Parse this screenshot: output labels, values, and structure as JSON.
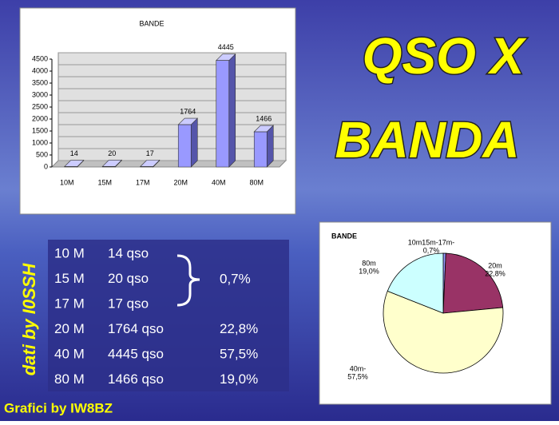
{
  "title": [
    "QSO X",
    "BANDA"
  ],
  "source": "dati by I0SSH",
  "credit": "Grafici by IW8BZ",
  "table": {
    "rows": [
      [
        "10 M",
        "14 qso"
      ],
      [
        "15 M",
        "20 qso"
      ],
      [
        "17 M",
        "17 qso"
      ],
      [
        "20 M",
        "1764 qso",
        "22,8%"
      ],
      [
        "40 M",
        "4445 qso",
        "57,5%"
      ],
      [
        "80 M",
        "1466 qso",
        "19,0%"
      ]
    ],
    "group_percent": "0,7%"
  },
  "chart_data": [
    {
      "type": "bar",
      "title": "BANDE",
      "categories": [
        "10M",
        "15M",
        "17M",
        "20M",
        "40M",
        "80M"
      ],
      "values": [
        14,
        20,
        17,
        1764,
        4445,
        1466
      ],
      "color": "#9999ff",
      "ylim": [
        0,
        4500
      ],
      "yticks": [
        0,
        500,
        1000,
        1500,
        2000,
        2500,
        3000,
        3500,
        4000,
        4500
      ],
      "grid": true
    },
    {
      "type": "pie",
      "title": "BANDE",
      "categories": [
        "10m15m-17m-",
        "20m",
        "40m-",
        "80m"
      ],
      "values": [
        0.7,
        22.8,
        57.5,
        19.0
      ],
      "value_labels": [
        "0,7%",
        "22,8%",
        "57,5%",
        "19,0%"
      ],
      "colors": [
        "#9999ff",
        "#993366",
        "#ffffcc",
        "#ccffff"
      ]
    }
  ]
}
